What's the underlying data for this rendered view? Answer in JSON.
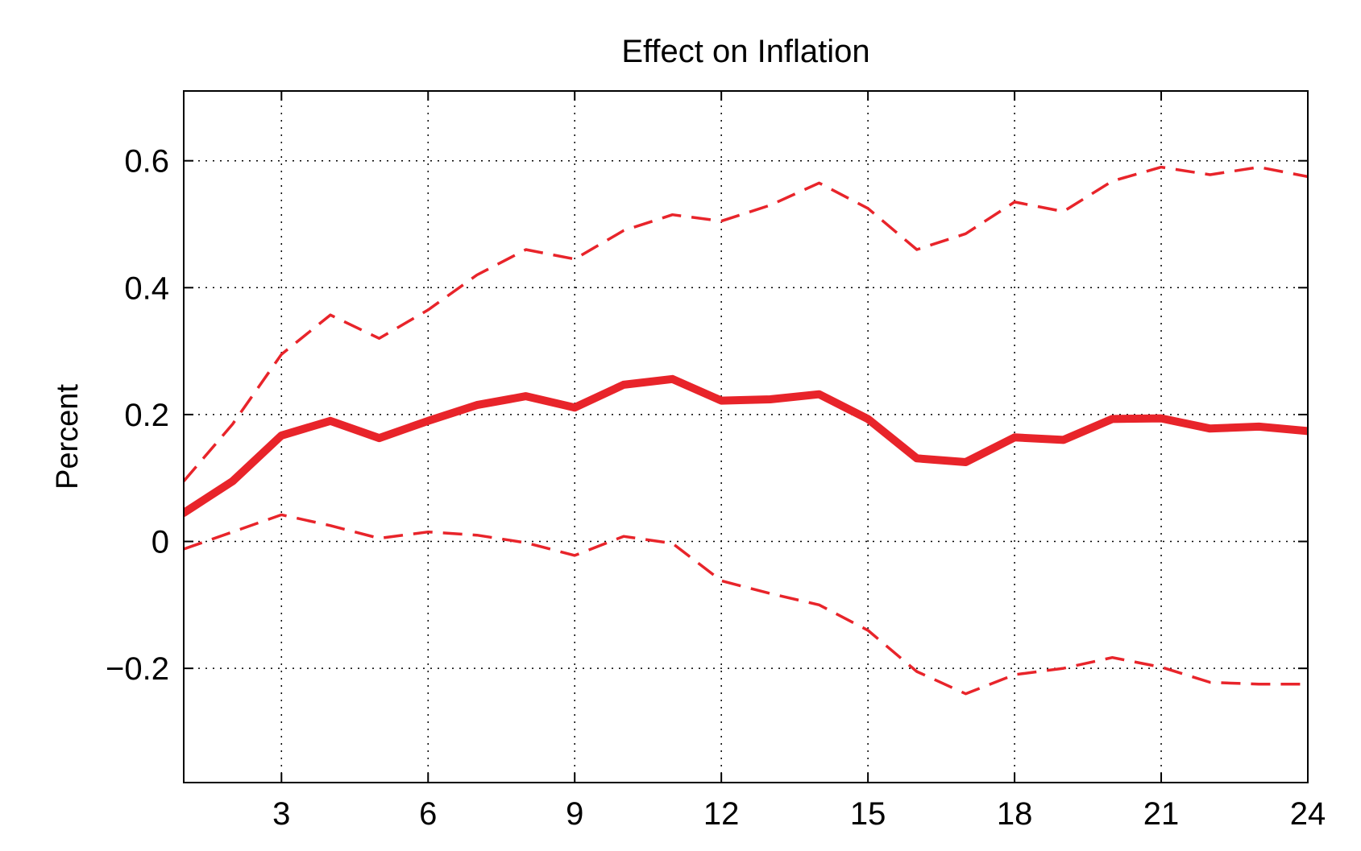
{
  "chart_data": {
    "type": "line",
    "title": "Effect on Inflation",
    "xlabel": "",
    "ylabel": "Percent",
    "xlim": [
      1,
      24
    ],
    "ylim": [
      -0.38,
      0.71
    ],
    "xticks": [
      3,
      6,
      9,
      12,
      15,
      18,
      21,
      24
    ],
    "xtick_labels": [
      "3",
      "6",
      "9",
      "12",
      "15",
      "18",
      "21",
      "24"
    ],
    "yticks": [
      -0.2,
      0,
      0.2,
      0.4,
      0.6
    ],
    "ytick_labels": [
      "−0.2",
      "0",
      "0.2",
      "0.4",
      "0.6"
    ],
    "grid": true,
    "x": [
      1,
      2,
      3,
      4,
      5,
      6,
      7,
      8,
      9,
      10,
      11,
      12,
      13,
      14,
      15,
      16,
      17,
      18,
      19,
      20,
      21,
      22,
      23,
      24
    ],
    "series": [
      {
        "role": "estimate",
        "style": "solid",
        "color": "#e8242a",
        "values": [
          0.045,
          0.095,
          0.167,
          0.19,
          0.163,
          0.19,
          0.215,
          0.229,
          0.211,
          0.247,
          0.256,
          0.222,
          0.224,
          0.232,
          0.193,
          0.131,
          0.125,
          0.164,
          0.16,
          0.193,
          0.194,
          0.178,
          0.181,
          0.174
        ]
      },
      {
        "role": "upper-band",
        "style": "dashed",
        "color": "#e8242a",
        "values": [
          0.095,
          0.185,
          0.295,
          0.357,
          0.32,
          0.365,
          0.42,
          0.46,
          0.445,
          0.49,
          0.515,
          0.505,
          0.53,
          0.565,
          0.525,
          0.46,
          0.485,
          0.535,
          0.52,
          0.568,
          0.59,
          0.578,
          0.59,
          0.575
        ]
      },
      {
        "role": "lower-band",
        "style": "dashed",
        "color": "#e8242a",
        "values": [
          -0.012,
          0.015,
          0.042,
          0.025,
          0.005,
          0.015,
          0.01,
          -0.002,
          -0.022,
          0.008,
          -0.003,
          -0.062,
          -0.082,
          -0.1,
          -0.14,
          -0.205,
          -0.24,
          -0.21,
          -0.2,
          -0.183,
          -0.198,
          -0.222,
          -0.225,
          -0.225
        ]
      }
    ]
  }
}
